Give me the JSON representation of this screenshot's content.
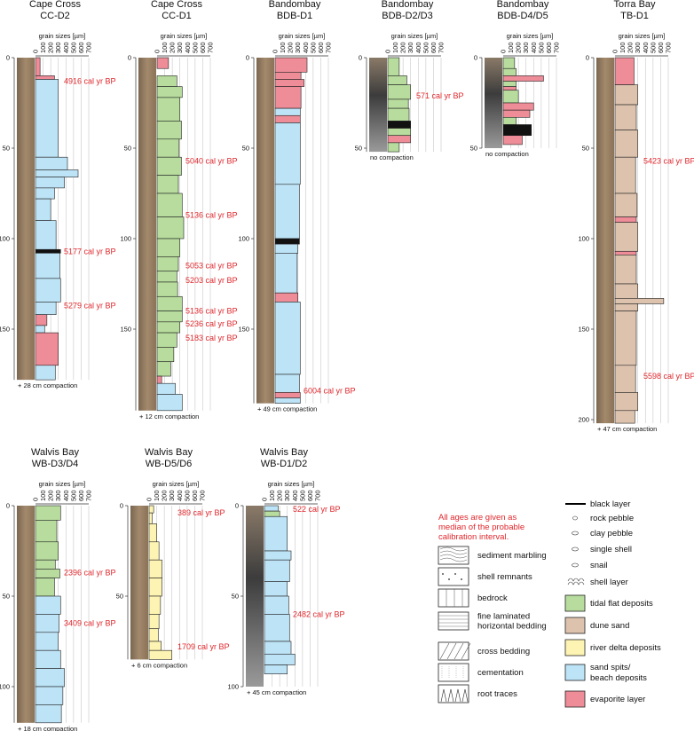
{
  "chart_data": [
    {
      "type": "core-log",
      "title": [
        "Cape Cross",
        "CC-D2"
      ],
      "xlabel": "grain sizes [µm]",
      "xlim": [
        0,
        700
      ],
      "xticks": [
        0,
        100,
        200,
        300,
        400,
        500,
        600,
        700
      ],
      "ylim": [
        0,
        178
      ],
      "yticks": [
        0,
        50,
        100,
        150
      ],
      "grid": true,
      "layers": {
        "top": [
          0,
          10,
          12,
          55,
          62,
          66,
          72,
          78,
          90,
          106,
          108,
          122,
          135,
          142,
          148,
          152,
          170
        ],
        "bottom": [
          10,
          12,
          55,
          62,
          66,
          72,
          78,
          90,
          106,
          108,
          122,
          135,
          142,
          148,
          152,
          170,
          178
        ],
        "values": [
          60,
          250,
          300,
          420,
          560,
          380,
          250,
          200,
          270,
          330,
          320,
          330,
          270,
          150,
          120,
          300,
          260
        ],
        "colors": [
          "#ee8c98",
          "#ee8c98",
          "#bde3f6",
          "#bde3f6",
          "#bde3f6",
          "#bde3f6",
          "#bde3f6",
          "#bde3f6",
          "#bde3f6",
          "#111111",
          "#bde3f6",
          "#bde3f6",
          "#bde3f6",
          "#ee8c98",
          "#bde3f6",
          "#ee8c98",
          "#bde3f6"
        ]
      },
      "ages": {
        "depth": [
          13,
          107,
          137
        ],
        "labels": [
          "4916 cal yr BP",
          "5177 cal yr BP",
          "5279 cal yr BP"
        ]
      },
      "note": "+ 28 cm compaction"
    },
    {
      "type": "core-log",
      "title": [
        "Cape Cross",
        "CC-D1"
      ],
      "xlabel": "grain sizes [µm]",
      "xlim": [
        0,
        700
      ],
      "xticks": [
        0,
        100,
        200,
        300,
        400,
        500,
        600,
        700
      ],
      "ylim": [
        0,
        195
      ],
      "yticks": [
        0,
        50,
        100,
        150
      ],
      "grid": true,
      "layers": {
        "top": [
          0,
          10,
          16,
          22,
          35,
          45,
          55,
          65,
          75,
          88,
          100,
          110,
          118,
          124,
          132,
          140,
          146,
          152,
          160,
          168,
          176,
          180,
          186
        ],
        "bottom": [
          6,
          16,
          22,
          35,
          45,
          55,
          65,
          75,
          88,
          100,
          110,
          118,
          124,
          132,
          140,
          146,
          152,
          160,
          168,
          176,
          180,
          186,
          195
        ],
        "values": [
          150,
          260,
          330,
          300,
          320,
          290,
          320,
          280,
          330,
          350,
          300,
          280,
          260,
          270,
          330,
          330,
          300,
          260,
          220,
          180,
          60,
          240,
          330
        ],
        "colors": [
          "#ee8c98",
          "#b7dc9d",
          "#b7dc9d",
          "#b7dc9d",
          "#b7dc9d",
          "#b7dc9d",
          "#b7dc9d",
          "#b7dc9d",
          "#b7dc9d",
          "#b7dc9d",
          "#b7dc9d",
          "#b7dc9d",
          "#b7dc9d",
          "#b7dc9d",
          "#b7dc9d",
          "#b7dc9d",
          "#b7dc9d",
          "#b7dc9d",
          "#b7dc9d",
          "#b7dc9d",
          "#ee8c98",
          "#bde3f6",
          "#bde3f6"
        ]
      },
      "ages": {
        "depth": [
          57,
          87,
          115,
          123,
          140,
          147,
          155
        ],
        "labels": [
          "5040 cal yr BP",
          "5136 cal yr BP",
          "5053 cal yr BP",
          "5203 cal yr BP",
          "5136 cal yr BP",
          "5236 cal yr BP",
          "5183 cal yr BP"
        ]
      },
      "note": "+ 12 cm compaction"
    },
    {
      "type": "core-log",
      "title": [
        "Bandombay",
        "BDB-D1"
      ],
      "xlabel": "grain sizes [µm]",
      "xlim": [
        0,
        700
      ],
      "xticks": [
        0,
        100,
        200,
        300,
        400,
        500,
        600,
        700
      ],
      "ylim": [
        0,
        191
      ],
      "yticks": [
        0,
        50,
        100,
        150
      ],
      "grid": true,
      "layers": {
        "top": [
          0,
          8,
          12,
          16,
          28,
          32,
          36,
          70,
          100,
          103,
          108,
          130,
          135,
          175,
          185,
          188
        ],
        "bottom": [
          8,
          12,
          16,
          28,
          32,
          36,
          70,
          100,
          103,
          108,
          130,
          135,
          175,
          185,
          188,
          191
        ],
        "values": [
          420,
          340,
          380,
          340,
          330,
          330,
          330,
          320,
          320,
          300,
          290,
          300,
          330,
          320,
          330,
          330
        ],
        "colors": [
          "#ee8c98",
          "#ee8c98",
          "#ee8c98",
          "#ee8c98",
          "#bde3f6",
          "#ee8c98",
          "#bde3f6",
          "#bde3f6",
          "#111111",
          "#bde3f6",
          "#bde3f6",
          "#ee8c98",
          "#bde3f6",
          "#bde3f6",
          "#ee8c98",
          "#bde3f6"
        ]
      },
      "ages": {
        "depth": [
          184
        ],
        "labels": [
          "6004 cal yr BP"
        ]
      },
      "note": "+ 49 cm compaction"
    },
    {
      "type": "core-log",
      "title": [
        "Bandombay",
        "BDB-D2/D3"
      ],
      "xlabel": "grain sizes [µm]",
      "xlim": [
        0,
        700
      ],
      "xticks": [
        0,
        100,
        200,
        300,
        400,
        500,
        600,
        700
      ],
      "ylim": [
        0,
        52
      ],
      "yticks": [
        0,
        50
      ],
      "grid": true,
      "layers": {
        "top": [
          0,
          10,
          15,
          23,
          28,
          35,
          39,
          43,
          47
        ],
        "bottom": [
          10,
          15,
          23,
          28,
          35,
          39,
          43,
          47,
          52
        ],
        "values": [
          150,
          250,
          300,
          270,
          280,
          300,
          300,
          300,
          150
        ],
        "colors": [
          "#b7dc9d",
          "#b7dc9d",
          "#b7dc9d",
          "#b7dc9d",
          "#b7dc9d",
          "#111111",
          "#b7dc9d",
          "#ee8c98",
          "#b7dc9d"
        ]
      },
      "ages": {
        "depth": [
          21
        ],
        "labels": [
          "571 cal yr BP"
        ]
      },
      "note": "no compaction"
    },
    {
      "type": "core-log",
      "title": [
        "Bandombay",
        "BDB-D4/D5"
      ],
      "xlabel": "grain sizes [µm]",
      "xlim": [
        0,
        700
      ],
      "xticks": [
        0,
        100,
        200,
        300,
        400,
        500,
        600,
        700
      ],
      "ylim": [
        0,
        50
      ],
      "yticks": [
        0,
        50
      ],
      "grid": true,
      "layers": {
        "top": [
          0,
          6,
          10,
          13,
          16,
          18,
          25,
          29,
          33,
          37,
          43
        ],
        "bottom": [
          6,
          10,
          13,
          16,
          18,
          25,
          29,
          33,
          37,
          43,
          48
        ],
        "values": [
          150,
          170,
          530,
          170,
          170,
          200,
          400,
          350,
          170,
          370,
          250
        ],
        "colors": [
          "#b7dc9d",
          "#b7dc9d",
          "#ee8c98",
          "#b7dc9d",
          "#ee8c98",
          "#b7dc9d",
          "#ee8c98",
          "#ee8c98",
          "#b7dc9d",
          "#111111",
          "#ee8c98"
        ]
      },
      "ages": {
        "depth": [],
        "labels": []
      },
      "note": "no compaction"
    },
    {
      "type": "core-log",
      "title": [
        "Torra Bay",
        "TB-D1"
      ],
      "xlabel": "grain sizes [µm]",
      "xlim": [
        0,
        700
      ],
      "xticks": [
        0,
        100,
        200,
        300,
        400,
        500,
        600,
        700
      ],
      "ylim": [
        0,
        202
      ],
      "yticks": [
        0,
        50,
        100,
        150,
        200
      ],
      "grid": true,
      "layers": {
        "top": [
          0,
          15,
          26,
          40,
          55,
          75,
          88,
          91,
          107,
          109,
          125,
          133,
          136,
          140,
          170,
          185,
          195
        ],
        "bottom": [
          15,
          26,
          40,
          55,
          75,
          88,
          91,
          107,
          109,
          125,
          133,
          136,
          140,
          170,
          185,
          195,
          202
        ],
        "values": [
          250,
          300,
          280,
          300,
          270,
          290,
          280,
          300,
          280,
          280,
          300,
          640,
          300,
          280,
          270,
          300,
          260
        ],
        "colors": [
          "#ee8c98",
          "#ddc3ae",
          "#ddc3ae",
          "#ddc3ae",
          "#ddc3ae",
          "#ddc3ae",
          "#ee8c98",
          "#ddc3ae",
          "#ee8c98",
          "#ddc3ae",
          "#ddc3ae",
          "#ddc3ae",
          "#ddc3ae",
          "#ddc3ae",
          "#ddc3ae",
          "#ddc3ae",
          "#ddc3ae"
        ]
      },
      "ages": {
        "depth": [
          57,
          176
        ],
        "labels": [
          "5423 cal yr BP",
          "5598 cal yr BP"
        ]
      },
      "note": "+ 47 cm compaction"
    },
    {
      "type": "core-log",
      "title": [
        "Walvis Bay",
        "WB-D3/D4"
      ],
      "xlabel": "grain sizes [µm]",
      "xlim": [
        0,
        700
      ],
      "xticks": [
        0,
        100,
        200,
        300,
        400,
        500,
        600,
        700
      ],
      "ylim": [
        0,
        120
      ],
      "yticks": [
        0,
        50,
        100
      ],
      "grid": true,
      "layers": {
        "top": [
          0,
          8,
          20,
          30,
          35,
          40,
          50,
          60,
          70,
          80,
          90,
          100,
          110
        ],
        "bottom": [
          8,
          20,
          30,
          35,
          40,
          50,
          60,
          70,
          80,
          90,
          100,
          110,
          120
        ],
        "values": [
          330,
          280,
          300,
          260,
          320,
          250,
          330,
          310,
          300,
          330,
          380,
          360,
          340
        ],
        "colors": [
          "#b7dc9d",
          "#b7dc9d",
          "#b7dc9d",
          "#b7dc9d",
          "#b7dc9d",
          "#b7dc9d",
          "#bde3f6",
          "#bde3f6",
          "#bde3f6",
          "#bde3f6",
          "#bde3f6",
          "#bde3f6",
          "#bde3f6"
        ]
      },
      "ages": {
        "depth": [
          37,
          65
        ],
        "labels": [
          "2396 cal yr BP",
          "3409 cal yr BP"
        ]
      },
      "note": "+ 18 cm compaction"
    },
    {
      "type": "core-log",
      "title": [
        "Walvis Bay",
        "WB-D5/D6"
      ],
      "xlabel": "grain sizes [µm]",
      "xlim": [
        0,
        700
      ],
      "xticks": [
        0,
        100,
        200,
        300,
        400,
        500,
        600,
        700
      ],
      "ylim": [
        0,
        85
      ],
      "yticks": [
        0,
        50
      ],
      "grid": true,
      "layers": {
        "top": [
          0,
          4,
          10,
          20,
          30,
          40,
          50,
          60,
          68,
          75,
          80
        ],
        "bottom": [
          4,
          10,
          20,
          30,
          40,
          50,
          60,
          68,
          75,
          80,
          85
        ],
        "values": [
          60,
          40,
          100,
          130,
          170,
          170,
          150,
          130,
          120,
          160,
          300
        ],
        "colors": [
          "#fdf3b3",
          "#fdf3b3",
          "#fdf3b3",
          "#fdf3b3",
          "#fdf3b3",
          "#fdf3b3",
          "#fdf3b3",
          "#fdf3b3",
          "#fdf3b3",
          "#fdf3b3",
          "#fdf3b3"
        ]
      },
      "ages": {
        "depth": [
          4,
          78
        ],
        "labels": [
          "389 cal yr BP",
          "1709 cal yr BP"
        ]
      },
      "note": "+ 6 cm compaction"
    },
    {
      "type": "core-log",
      "title": [
        "Walvis Bay",
        "WB-D1/D2"
      ],
      "xlabel": "grain sizes [µm]",
      "xlim": [
        0,
        700
      ],
      "xticks": [
        0,
        100,
        200,
        300,
        400,
        500,
        600,
        700
      ],
      "ylim": [
        0,
        100
      ],
      "yticks": [
        0,
        50,
        100
      ],
      "grid": true,
      "layers": {
        "top": [
          0,
          3,
          6,
          25,
          30,
          42,
          50,
          60,
          75,
          82,
          88
        ],
        "bottom": [
          3,
          6,
          25,
          30,
          42,
          50,
          60,
          75,
          82,
          88,
          93
        ],
        "values": [
          180,
          200,
          300,
          350,
          330,
          300,
          320,
          330,
          350,
          400,
          300
        ],
        "colors": [
          "#bde3f6",
          "#b7dc9d",
          "#bde3f6",
          "#bde3f6",
          "#bde3f6",
          "#bde3f6",
          "#bde3f6",
          "#bde3f6",
          "#bde3f6",
          "#bde3f6",
          "#bde3f6"
        ]
      },
      "ages": {
        "depth": [
          2,
          60
        ],
        "labels": [
          "522 cal yr BP",
          "2482 cal yr BP"
        ]
      },
      "note": "+ 45 cm compaction"
    }
  ],
  "legend": {
    "note": [
      "All ages are given as",
      "median of the probable",
      "calibration interval."
    ],
    "structures": [
      {
        "label": [
          "sediment marbling"
        ]
      },
      {
        "label": [
          "shell remnants"
        ]
      },
      {
        "label": [
          "bedrock"
        ]
      },
      {
        "label": [
          "fine laminated",
          "horizontal bedding"
        ]
      },
      {
        "label": [
          "cross bedding"
        ]
      },
      {
        "label": [
          "cementation"
        ]
      },
      {
        "label": [
          "root traces"
        ]
      }
    ],
    "symbols": [
      {
        "label": [
          "black layer"
        ]
      },
      {
        "label": [
          "rock pebble"
        ]
      },
      {
        "label": [
          "clay pebble"
        ]
      },
      {
        "label": [
          "single shell"
        ]
      },
      {
        "label": [
          "snail"
        ]
      },
      {
        "label": [
          "shell layer"
        ]
      }
    ],
    "facies": [
      {
        "label": [
          "tidal flat deposits"
        ],
        "color": "#b7dc9d"
      },
      {
        "label": [
          "dune sand"
        ],
        "color": "#ddc3ae"
      },
      {
        "label": [
          "river delta deposits"
        ],
        "color": "#fdf3b3"
      },
      {
        "label": [
          "sand spits/",
          "beach deposits"
        ],
        "color": "#bde3f6"
      },
      {
        "label": [
          "evaporite layer"
        ],
        "color": "#ee8c98"
      }
    ]
  }
}
